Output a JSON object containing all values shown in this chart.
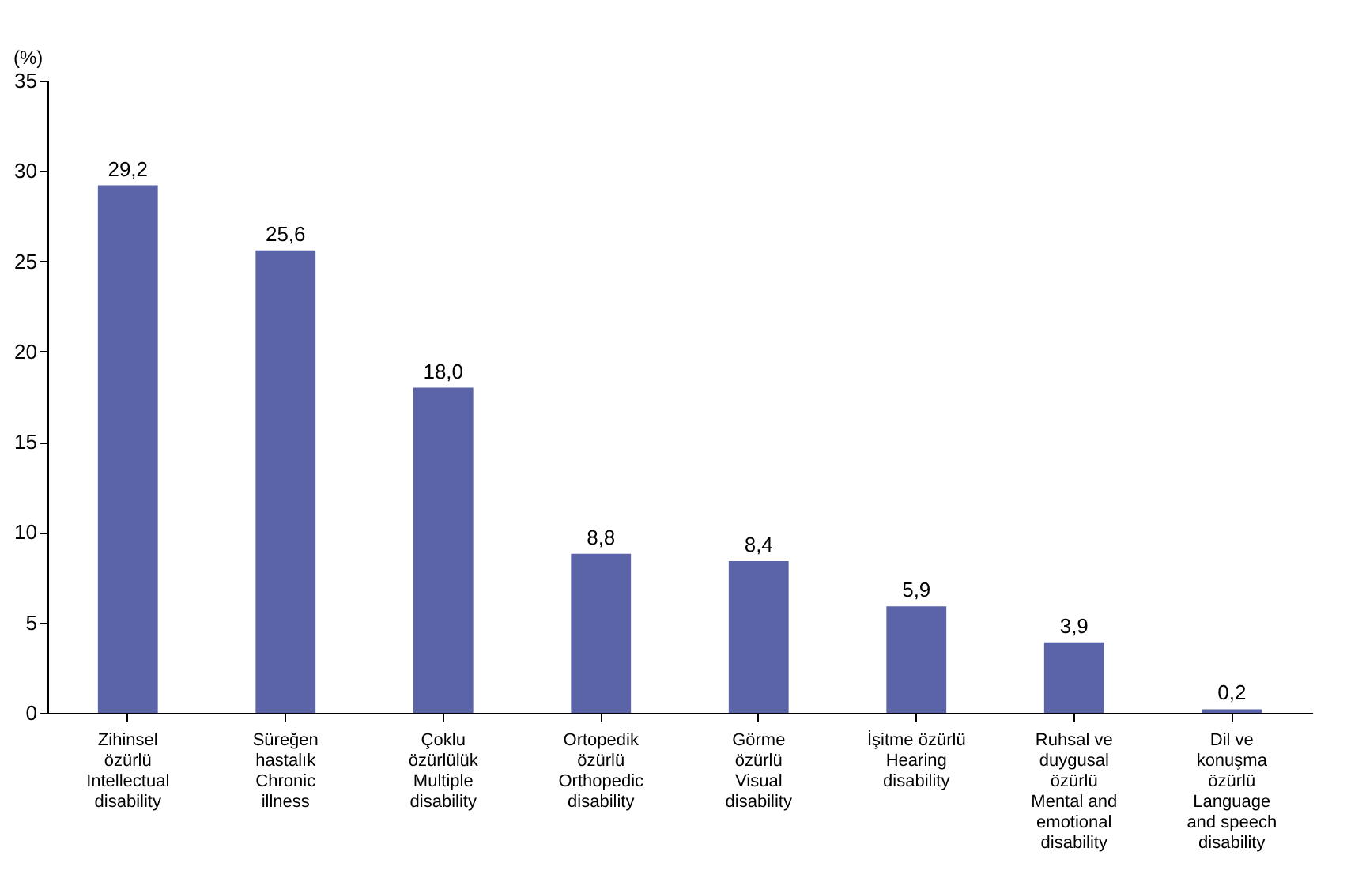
{
  "chart_data": {
    "type": "bar",
    "ylabel": "(%)",
    "categories": [
      "Zihinsel\nözürlü\nIntellectual\ndisability",
      "Süreğen\nhastalık\nChronic\nillness",
      "Çoklu\nözürlülük\nMultiple\ndisability",
      "Ortopedik\nözürlü\nOrthopedic\ndisability",
      "Görme\nözürlü\nVisual\ndisability",
      "İşitme özürlü\nHearing\ndisability",
      "Ruhsal ve\nduygusal\nözürlü\nMental and\nemotional\ndisability",
      "Dil ve\nkonuşma\nözürlü\nLanguage\nand speech\ndisability"
    ],
    "values": [
      29.2,
      25.6,
      18.0,
      8.8,
      8.4,
      5.9,
      3.9,
      0.2
    ],
    "value_labels": [
      "29,2",
      "25,6",
      "18,0",
      "8,8",
      "8,4",
      "5,9",
      "3,9",
      "0,2"
    ],
    "color": "#5b64a8",
    "ylim": [
      0,
      35
    ],
    "yticks": [
      0,
      5,
      10,
      15,
      20,
      25,
      30,
      35
    ],
    "grid": false
  }
}
